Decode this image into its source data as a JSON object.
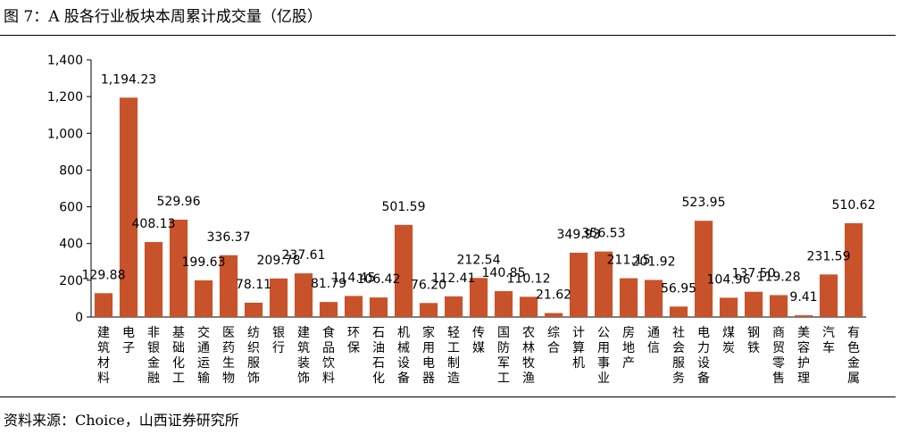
{
  "title": "图 7：A 股各行业板块本周累计成交量（亿股）",
  "source": "资料来源：Choice，山西证券研究所",
  "colors": {
    "bar": "#C8532B",
    "axis": "#000000"
  },
  "chart_data": {
    "type": "bar",
    "title": "图 7：A 股各行业板块本周累计成交量（亿股）",
    "xlabel": "",
    "ylabel": "",
    "ylim": [
      0,
      1400
    ],
    "yticks": [
      0,
      200,
      400,
      600,
      800,
      1000,
      1200,
      1400
    ],
    "ytick_labels": [
      "0",
      "200",
      "400",
      "600",
      "800",
      "1,000",
      "1,200",
      "1,400"
    ],
    "grid": false,
    "categories": [
      "建筑材料",
      "电子",
      "非银金融",
      "基础化工",
      "交通运输",
      "医药生物",
      "纺织服饰",
      "银行",
      "建筑装饰",
      "食品饮料",
      "环保",
      "石油石化",
      "机械设备",
      "家用电器",
      "轻工制造",
      "传媒",
      "国防军工",
      "农林牧渔",
      "综合",
      "计算机",
      "公用事业",
      "房地产",
      "通信",
      "社会服务",
      "电力设备",
      "煤炭",
      "钢铁",
      "商贸零售",
      "美容护理",
      "汽车",
      "有色金属"
    ],
    "values": [
      129.88,
      1194.23,
      408.13,
      529.96,
      199.63,
      336.37,
      78.11,
      209.78,
      237.61,
      81.79,
      114.45,
      106.42,
      501.59,
      76.2,
      112.41,
      212.54,
      140.85,
      110.12,
      21.62,
      349.93,
      356.53,
      211.15,
      201.92,
      56.95,
      523.95,
      104.96,
      137.5,
      119.28,
      9.41,
      231.59,
      510.62
    ],
    "value_labels": [
      "129.88",
      "1,194.23",
      "408.13",
      "529.96",
      "199.63",
      "336.37",
      "78.11",
      "209.78",
      "237.61",
      "81.79",
      "114.45",
      "106.42",
      "501.59",
      "76.20",
      "112.41",
      "212.54",
      "140.85",
      "110.12",
      "21.62",
      "349.93",
      "356.53",
      "211.15",
      "201.92",
      "56.95",
      "523.95",
      "104.96",
      "137.50",
      "119.28",
      "9.41",
      "231.59",
      "510.62"
    ]
  }
}
